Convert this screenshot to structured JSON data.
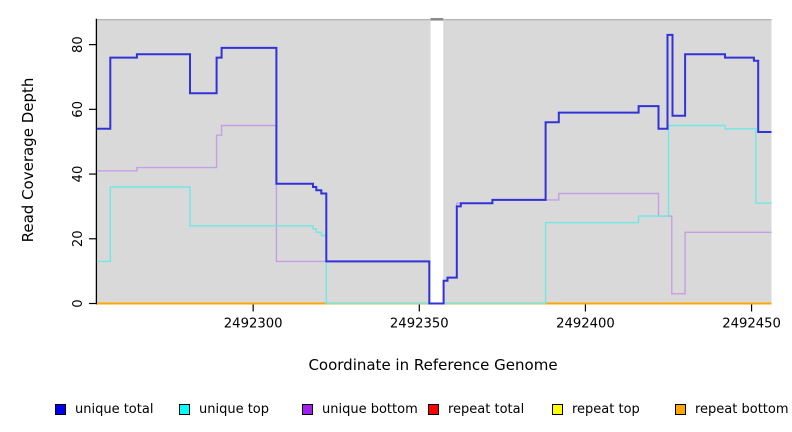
{
  "figure": {
    "background": "#FFFFFF",
    "plot_background": "#D9D9D9",
    "plot_top_border": "#B5B5B5",
    "gap_cap_color": "#8A8A8A",
    "axis_color": "#000000"
  },
  "chart_data": {
    "type": "line",
    "step": true,
    "title": "",
    "xlabel": "Coordinate in Reference Genome",
    "ylabel": "Read Coverage Depth",
    "x_range": [
      2492253,
      2492456
    ],
    "y_range": [
      0,
      87.7
    ],
    "x_ticks": [
      2492300,
      2492350,
      2492400,
      2492450
    ],
    "y_ticks": [
      0,
      20,
      40,
      60,
      80
    ],
    "grid": false,
    "legend_position": "bottom",
    "gap_region": {
      "x_start": 2492353.4,
      "x_end": 2492357.2
    },
    "series": [
      {
        "name": "repeat total",
        "line_color": "#EE0000",
        "width": 1.2,
        "points": [
          [
            2492253,
            0
          ]
        ]
      },
      {
        "name": "repeat top",
        "line_color": "#FFFF00",
        "width": 1.2,
        "points": [
          [
            2492253,
            0
          ]
        ]
      },
      {
        "name": "repeat bottom",
        "line_color": "#FFA500",
        "width": 2,
        "points": [
          [
            2492253,
            0
          ]
        ]
      },
      {
        "name": "unique bottom",
        "line_color": "#C59FE3",
        "width": 1.4,
        "points": [
          [
            2492253,
            41
          ],
          [
            2492265,
            42
          ],
          [
            2492289,
            52
          ],
          [
            2492290.5,
            55
          ],
          [
            2492307,
            13
          ],
          [
            2492353,
            0
          ],
          [
            2492357.3,
            7
          ],
          [
            2492358.5,
            8
          ],
          [
            2492361.3,
            31
          ],
          [
            2492372,
            32
          ],
          [
            2492392,
            34
          ],
          [
            2492422,
            27
          ],
          [
            2492426,
            3
          ],
          [
            2492430,
            22
          ]
        ]
      },
      {
        "name": "unique top",
        "line_color": "#70E8E4",
        "width": 1.4,
        "points": [
          [
            2492253,
            13
          ],
          [
            2492257,
            36
          ],
          [
            2492281,
            24
          ],
          [
            2492318,
            23
          ],
          [
            2492319,
            22
          ],
          [
            2492320.5,
            21
          ],
          [
            2492322,
            0
          ],
          [
            2492388,
            25
          ],
          [
            2492416,
            27
          ],
          [
            2492425,
            55
          ],
          [
            2492442,
            54
          ],
          [
            2492451.3,
            31
          ]
        ]
      },
      {
        "name": "unique total",
        "line_color": "#3232D8",
        "width": 2,
        "points": [
          [
            2492253,
            54
          ],
          [
            2492257,
            76
          ],
          [
            2492265,
            77
          ],
          [
            2492281,
            65
          ],
          [
            2492289,
            76
          ],
          [
            2492290.5,
            79
          ],
          [
            2492307,
            37
          ],
          [
            2492318,
            36
          ],
          [
            2492319,
            35
          ],
          [
            2492320.5,
            34
          ],
          [
            2492322,
            13
          ],
          [
            2492353,
            0
          ],
          [
            2492357.3,
            7
          ],
          [
            2492358.5,
            8
          ],
          [
            2492361.3,
            30
          ],
          [
            2492362.5,
            31
          ],
          [
            2492372,
            32
          ],
          [
            2492388,
            56
          ],
          [
            2492392,
            59
          ],
          [
            2492416,
            61
          ],
          [
            2492422,
            54
          ],
          [
            2492424.7,
            83
          ],
          [
            2492426.2,
            58
          ],
          [
            2492430,
            77
          ],
          [
            2492442,
            76
          ],
          [
            2492450.7,
            75
          ],
          [
            2492452,
            53
          ]
        ]
      }
    ],
    "legend": [
      {
        "label": "unique total",
        "swatch": "#0000EE"
      },
      {
        "label": "unique top",
        "swatch": "#00FFFF"
      },
      {
        "label": "unique bottom",
        "swatch": "#A020F0"
      },
      {
        "label": "repeat total",
        "swatch": "#FF0000"
      },
      {
        "label": "repeat top",
        "swatch": "#FFFF00"
      },
      {
        "label": "repeat bottom",
        "swatch": "#FFA500"
      }
    ]
  }
}
